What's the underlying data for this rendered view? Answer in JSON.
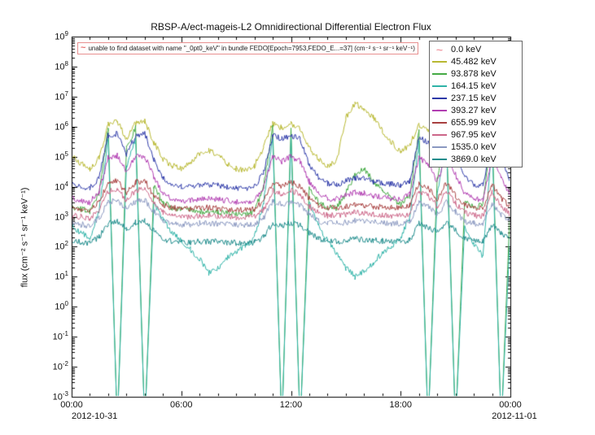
{
  "warning": {
    "icon": "~",
    "text": "unable to find dataset with name \"_0pt0_keV\" in bundle FEDO[Epoch=7953,FEDO_E...=37] (cm⁻² s⁻¹ sr⁻¹ keV⁻¹)"
  },
  "chart_data": {
    "type": "line",
    "title": "RBSP-A/ect-mageis-L2  Omnidirectional Differential Electron Flux",
    "ylabel": "flux (cm⁻² s⁻¹ sr⁻¹ keV⁻¹)",
    "xlabel": "",
    "x_unit": "hours since 2012-10-31 00:00",
    "xlim": [
      0,
      24
    ],
    "ylog": true,
    "ylim": [
      0.001,
      1000000000.0
    ],
    "y_tick_exponents": [
      -3,
      -2,
      -1,
      0,
      1,
      2,
      3,
      4,
      5,
      6,
      7,
      8,
      9
    ],
    "x_ticks": [
      {
        "t": 0,
        "label": "00:00"
      },
      {
        "t": 6,
        "label": "06:00"
      },
      {
        "t": 12,
        "label": "12:00"
      },
      {
        "t": 18,
        "label": "18:00"
      },
      {
        "t": 24,
        "label": "00:00"
      }
    ],
    "x_date_left": "2012-10-31",
    "x_date_right": "2012-11-01",
    "legend_position": "top-right",
    "grid": false,
    "x": [
      0,
      0.5,
      1,
      1.5,
      2,
      2.5,
      3,
      3.5,
      4,
      4.5,
      5,
      5.5,
      6,
      6.5,
      7,
      7.5,
      8,
      8.5,
      9,
      9.5,
      10,
      10.5,
      11,
      11.5,
      12,
      12.5,
      13,
      13.5,
      14,
      14.5,
      15,
      15.5,
      16,
      16.5,
      17,
      17.5,
      18,
      18.5,
      19,
      19.5,
      20,
      20.5,
      21,
      21.5,
      22,
      22.5,
      23,
      23.5,
      24
    ],
    "series": [
      {
        "name": "0.0 keV",
        "color": "#f2a0a8",
        "missing": true,
        "values": []
      },
      {
        "name": "45.482 keV",
        "color": "#b8b832",
        "values": [
          100000.0,
          60000.0,
          40000.0,
          90000.0,
          1200000.0,
          1500000.0,
          400000.0,
          1300000.0,
          1500000.0,
          300000.0,
          80000.0,
          50000.0,
          40000.0,
          60000.0,
          130000.0,
          160000.0,
          110000.0,
          60000.0,
          40000.0,
          35000.0,
          50000.0,
          200000.0,
          1300000.0,
          900000.0,
          1200000.0,
          800000.0,
          200000.0,
          80000.0,
          50000.0,
          70000.0,
          2000000.0,
          6000000.0,
          4000000.0,
          2000000.0,
          700000.0,
          300000.0,
          150000.0,
          250000.0,
          1100000.0,
          700000.0,
          300000.0,
          1100000.0,
          400000.0,
          120000.0,
          60000.0,
          100000.0,
          1000000.0,
          300000.0,
          120000.0
        ]
      },
      {
        "name": "93.878 keV",
        "color": "#44aa44",
        "values": [
          2000.0,
          1800.0,
          1500.0,
          6000.0,
          900000.0,
          0.0001,
          200000.0,
          900000.0,
          0.0001,
          10000.0,
          3000.0,
          2000.0,
          1800.0,
          1600.0,
          1500.0,
          1500.0,
          1400.0,
          1300.0,
          1200.0,
          1200.0,
          1500.0,
          10000.0,
          900000.0,
          0.0001,
          900000.0,
          0.0001,
          10000.0,
          3000.0,
          2000.0,
          2000.0,
          6000.0,
          25000.0,
          40000.0,
          15000.0,
          8000.0,
          4000.0,
          2500.0,
          5000.0,
          800000.0,
          0.0001,
          20000.0,
          800000.0,
          0.0001,
          3000.0,
          2000.0,
          2500.0,
          800000.0,
          0.0001,
          3000.0
        ]
      },
      {
        "name": "164.15 keV",
        "color": "#2fb3a8",
        "values": [
          500.0,
          300.0,
          200.0,
          1500.0,
          400000.0,
          0.0001,
          50000.0,
          400000.0,
          0.0001,
          3000.0,
          800.0,
          300.0,
          150.0,
          80.0,
          40.0,
          13.0,
          20.0,
          40.0,
          70.0,
          100.0,
          200.0,
          3000.0,
          400000.0,
          0.0001,
          400000.0,
          0.0001,
          3000.0,
          500.0,
          150.0,
          60.0,
          20.0,
          10.0,
          15.0,
          30.0,
          60.0,
          100.0,
          200.0,
          1000.0,
          300000.0,
          0.0001,
          5000.0,
          300000.0,
          0.0001,
          500.0,
          120.0,
          50.0,
          300000.0,
          0.0001,
          400.0
        ]
      },
      {
        "name": "237.15 keV",
        "color": "#2d39a8",
        "values": [
          12000.0,
          10000.0,
          9000.0,
          20000.0,
          500000.0,
          600000.0,
          120000.0,
          500000.0,
          600000.0,
          80000.0,
          20000.0,
          12000.0,
          10000.0,
          10000.0,
          11000.0,
          12000.0,
          11000.0,
          10000.0,
          9000.0,
          9000.0,
          10000.0,
          30000.0,
          500000.0,
          400000.0,
          500000.0,
          400000.0,
          50000.0,
          20000.0,
          13000.0,
          12000.0,
          15000.0,
          20000.0,
          18000.0,
          15000.0,
          13000.0,
          12000.0,
          11000.0,
          16000.0,
          450000.0,
          300000.0,
          60000.0,
          450000.0,
          120000.0,
          20000.0,
          12000.0,
          11000.0,
          400000.0,
          100000.0,
          15000.0
        ]
      },
      {
        "name": "393.27 keV",
        "color": "#b13db1",
        "values": [
          4000.0,
          3500.0,
          3000.0,
          7000.0,
          90000.0,
          110000.0,
          30000.0,
          100000.0,
          110000.0,
          20000.0,
          6000.0,
          4000.0,
          3500.0,
          3500.0,
          4000.0,
          4000.0,
          3800.0,
          3500.0,
          3200.0,
          3200.0,
          3500.0,
          9000.0,
          100000.0,
          70000.0,
          100000.0,
          70000.0,
          15000.0,
          6000.0,
          4000.0,
          4000.0,
          5000.0,
          6500.0,
          6000.0,
          5000.0,
          4500.0,
          4000.0,
          3800.0,
          5500.0,
          90000.0,
          60000.0,
          15000.0,
          90000.0,
          25000.0,
          6000.0,
          4000.0,
          3600.0,
          80000.0,
          20000.0,
          5000.0
        ]
      },
      {
        "name": "655.99 keV",
        "color": "#a84040",
        "values": [
          2000.0,
          1800.0,
          1600.0,
          3200.0,
          13000.0,
          16000.0,
          6000.0,
          14000.0,
          16000.0,
          5000.0,
          2500.0,
          2000.0,
          1800.0,
          1800.0,
          2000.0,
          2000.0,
          1900.0,
          1800.0,
          1700.0,
          1700.0,
          1800.0,
          3200.0,
          14000.0,
          10000.0,
          14000.0,
          10000.0,
          4000.0,
          2500.0,
          2000.0,
          2000.0,
          2200.0,
          2600.0,
          2400.0,
          2200.0,
          2100.0,
          2000.0,
          1900.0,
          2300.0,
          13000.0,
          9000.0,
          4000.0,
          13000.0,
          5000.0,
          2500.0,
          2000.0,
          1900.0,
          12000.0,
          4000.0,
          2200.0
        ]
      },
      {
        "name": "967.95 keV",
        "color": "#cc6688",
        "values": [
          1100.0,
          1000.0,
          900.0,
          1700.0,
          7000.0,
          8500.0,
          3500.0,
          7500.0,
          8500.0,
          2800.0,
          1400.0,
          1100.0,
          1000.0,
          1000.0,
          1100.0,
          1100.0,
          1050.0,
          1000.0,
          950.0,
          950.0,
          1000.0,
          1700.0,
          7500.0,
          5500.0,
          7500.0,
          5500.0,
          2200.0,
          1400.0,
          1100.0,
          1100.0,
          1200.0,
          1400.0,
          1300.0,
          1200.0,
          1150.0,
          1100.0,
          1050.0,
          1250.0,
          7000.0,
          5000.0,
          2200.0,
          7000.0,
          2800.0,
          1400.0,
          1100.0,
          1050.0,
          6500.0,
          2200.0,
          1200.0
        ]
      },
      {
        "name": "1535.0 keV",
        "color": "#8a98c0",
        "values": [
          600.0,
          550.0,
          500.0,
          900.0,
          3000.0,
          3600.0,
          1800.0,
          3200.0,
          3600.0,
          1500.0,
          700.0,
          600.0,
          550.0,
          550.0,
          600.0,
          600.0,
          580.0,
          550.0,
          520.0,
          520.0,
          550.0,
          900.0,
          3200.0,
          2500.0,
          3200.0,
          2500.0,
          1200.0,
          700.0,
          600.0,
          600.0,
          650.0,
          720.0,
          680.0,
          650.0,
          620.0,
          600.0,
          580.0,
          680.0,
          3000.0,
          2200.0,
          1200.0,
          3000.0,
          1500.0,
          700.0,
          600.0,
          580.0,
          2800.0,
          1200.0,
          650.0
        ]
      },
      {
        "name": "3869.0 keV",
        "color": "#1f8c8c",
        "values": [
          150.0,
          140.0,
          130.0,
          210.0,
          600.0,
          720.0,
          400.0,
          640.0,
          720.0,
          350.0,
          180.0,
          150.0,
          140.0,
          140.0,
          150.0,
          150.0,
          145.0,
          140.0,
          135.0,
          135.0,
          140.0,
          210.0,
          640.0,
          500.0,
          640.0,
          500.0,
          300.0,
          180.0,
          150.0,
          150.0,
          160.0,
          185.0,
          170.0,
          160.0,
          155.0,
          150.0,
          145.0,
          165.0,
          600.0,
          450.0,
          300.0,
          600.0,
          350.0,
          180.0,
          150.0,
          145.0,
          550.0,
          300.0,
          160.0
        ]
      }
    ]
  }
}
